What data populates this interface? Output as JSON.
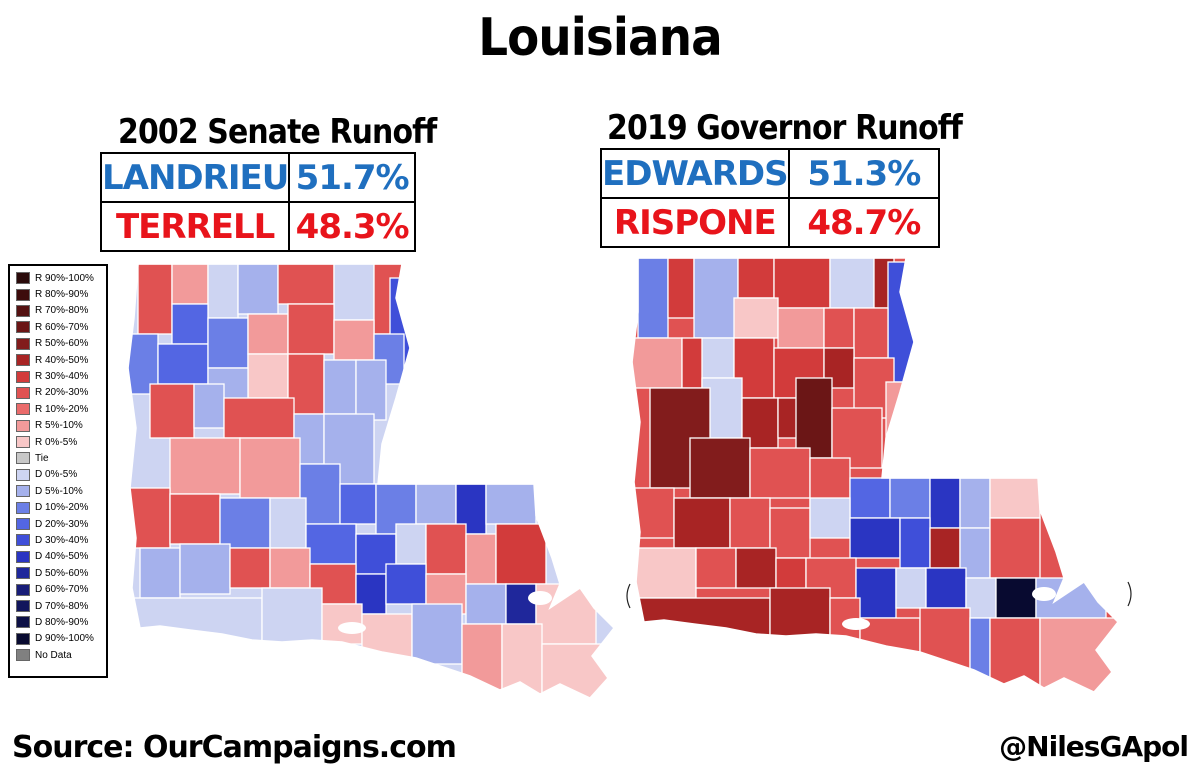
{
  "title": "Louisiana",
  "races": [
    {
      "title": "2002 Senate Runoff",
      "candidates": [
        {
          "name": "LANDRIEU",
          "pct": "51.7%",
          "color": "#1f6fbf"
        },
        {
          "name": "TERRELL",
          "pct": "48.3%",
          "color": "#e8141b"
        }
      ]
    },
    {
      "title": "2019 Governor Runoff",
      "candidates": [
        {
          "name": "EDWARDS",
          "pct": "51.3%",
          "color": "#1f6fbf"
        },
        {
          "name": "RISPONE",
          "pct": "48.7%",
          "color": "#e8141b"
        }
      ]
    }
  ],
  "legend": [
    {
      "label": "R 90%-100%",
      "color": "#2a0a0a"
    },
    {
      "label": "R 80%-90%",
      "color": "#3d0c0c"
    },
    {
      "label": "R 70%-80%",
      "color": "#541111"
    },
    {
      "label": "R 60%-70%",
      "color": "#6b1616"
    },
    {
      "label": "R 50%-60%",
      "color": "#821c1c"
    },
    {
      "label": "R 40%-50%",
      "color": "#a82424"
    },
    {
      "label": "R 30%-40%",
      "color": "#d23b3b"
    },
    {
      "label": "R 20%-30%",
      "color": "#e05252"
    },
    {
      "label": "R 10%-20%",
      "color": "#ea6b6b"
    },
    {
      "label": "R 5%-10%",
      "color": "#f29a9a"
    },
    {
      "label": "R 0%-5%",
      "color": "#f8c7c7"
    },
    {
      "label": "Tie",
      "color": "#c8c8c8"
    },
    {
      "label": "D 0%-5%",
      "color": "#cdd4f2"
    },
    {
      "label": "D 5%-10%",
      "color": "#a5b1ec"
    },
    {
      "label": "D 10%-20%",
      "color": "#6b7fe6"
    },
    {
      "label": "D 20%-30%",
      "color": "#5366e3"
    },
    {
      "label": "D 30%-40%",
      "color": "#3f4fd9"
    },
    {
      "label": "D 40%-50%",
      "color": "#2a35c2"
    },
    {
      "label": "D 50%-60%",
      "color": "#1f279b"
    },
    {
      "label": "D 60%-70%",
      "color": "#181d78"
    },
    {
      "label": "D 70%-80%",
      "color": "#12165c"
    },
    {
      "label": "D 80%-90%",
      "color": "#0d1045"
    },
    {
      "label": "D 90%-100%",
      "color": "#080a30"
    },
    {
      "label": "No Data",
      "color": "#808080"
    }
  ],
  "source": "Source: OurCampaigns.com",
  "handle": "@NilesGApol"
}
